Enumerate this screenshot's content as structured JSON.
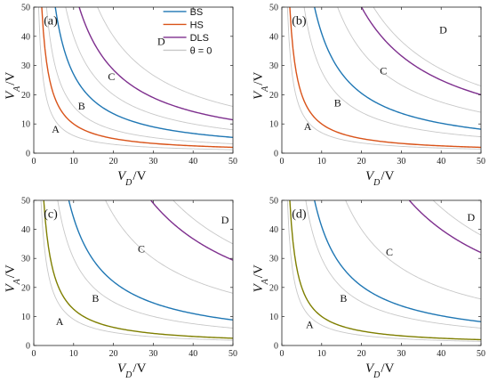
{
  "figure": {
    "curve_colors": {
      "BS": "#1f77b4",
      "HS": "#d95319",
      "DLS": "#7e2f8e",
      "theta0": "#c8c8c8",
      "green": "#7f7f00"
    },
    "legend": [
      {
        "key": "BS",
        "label": "BS"
      },
      {
        "key": "HS",
        "label": "HS"
      },
      {
        "key": "DLS",
        "label": "DLS"
      },
      {
        "key": "theta0",
        "label": "θ = 0"
      }
    ]
  },
  "chart_data": [
    {
      "type": "line",
      "panel_label": "(a)",
      "xlabel": "V_D/V",
      "ylabel": "V_A/V",
      "xlim": [
        0,
        50
      ],
      "ylim": [
        0,
        50
      ],
      "xticks": [
        "0",
        "10",
        "20",
        "30",
        "40",
        "50"
      ],
      "yticks": [
        "0",
        "10",
        "20",
        "30",
        "40",
        "50"
      ],
      "legend_position": "top-right",
      "series": [
        {
          "name": "HS",
          "k": 100
        },
        {
          "name": "BS",
          "k": 270
        },
        {
          "name": "DLS",
          "k": 570
        }
      ],
      "theta0_k": [
        60,
        160,
        400,
        800
      ],
      "regions": [
        {
          "label": "A",
          "x": 5.5,
          "y": 7
        },
        {
          "label": "B",
          "x": 12,
          "y": 15
        },
        {
          "label": "C",
          "x": 19.5,
          "y": 25
        },
        {
          "label": "D",
          "x": 32,
          "y": 37
        }
      ]
    },
    {
      "type": "line",
      "panel_label": "(b)",
      "xlabel": "V_D/V",
      "ylabel": "V_A/V",
      "xlim": [
        0,
        50
      ],
      "ylim": [
        0,
        50
      ],
      "xticks": [
        "0",
        "10",
        "20",
        "30",
        "40",
        "50"
      ],
      "yticks": [
        "0",
        "10",
        "20",
        "30",
        "40",
        "50"
      ],
      "series": [
        {
          "name": "HS",
          "k": 100
        },
        {
          "name": "BS",
          "k": 410
        },
        {
          "name": "DLS",
          "k": 1000
        }
      ],
      "theta0_k": [
        70,
        280,
        700,
        1150
      ],
      "regions": [
        {
          "label": "A",
          "x": 6.5,
          "y": 8
        },
        {
          "label": "B",
          "x": 14,
          "y": 16
        },
        {
          "label": "C",
          "x": 25.5,
          "y": 27
        },
        {
          "label": "D",
          "x": 40.5,
          "y": 41
        }
      ]
    },
    {
      "type": "line",
      "panel_label": "(c)",
      "xlabel": "V_D/V",
      "ylabel": "V_A/V",
      "xlim": [
        0,
        50
      ],
      "ylim": [
        0,
        50
      ],
      "xticks": [
        "0",
        "10",
        "20",
        "30",
        "40",
        "50"
      ],
      "yticks": [
        "0",
        "10",
        "20",
        "30",
        "40",
        "50"
      ],
      "series": [
        {
          "name": "HS",
          "k": 125,
          "color_key": "green"
        },
        {
          "name": "BS",
          "k": 440
        },
        {
          "name": "DLS",
          "k": 1470
        }
      ],
      "theta0_k": [
        90,
        300,
        900,
        1750
      ],
      "regions": [
        {
          "label": "A",
          "x": 6.5,
          "y": 7
        },
        {
          "label": "B",
          "x": 15.5,
          "y": 15
        },
        {
          "label": "C",
          "x": 27,
          "y": 32
        },
        {
          "label": "D",
          "x": 48,
          "y": 42
        }
      ]
    },
    {
      "type": "line",
      "panel_label": "(d)",
      "xlabel": "V_D/V",
      "ylabel": "V_A/V",
      "xlim": [
        0,
        50
      ],
      "ylim": [
        0,
        50
      ],
      "xticks": [
        "0",
        "10",
        "20",
        "30",
        "40",
        "50"
      ],
      "yticks": [
        "0",
        "10",
        "20",
        "30",
        "40",
        "50"
      ],
      "series": [
        {
          "name": "HS",
          "k": 100,
          "color_key": "green"
        },
        {
          "name": "BS",
          "k": 410
        },
        {
          "name": "DLS",
          "k": 1600
        }
      ],
      "theta0_k": [
        70,
        300,
        800,
        1900
      ],
      "regions": [
        {
          "label": "A",
          "x": 7,
          "y": 6
        },
        {
          "label": "B",
          "x": 15.5,
          "y": 15
        },
        {
          "label": "C",
          "x": 27,
          "y": 31
        },
        {
          "label": "D",
          "x": 47.5,
          "y": 43
        }
      ]
    }
  ]
}
